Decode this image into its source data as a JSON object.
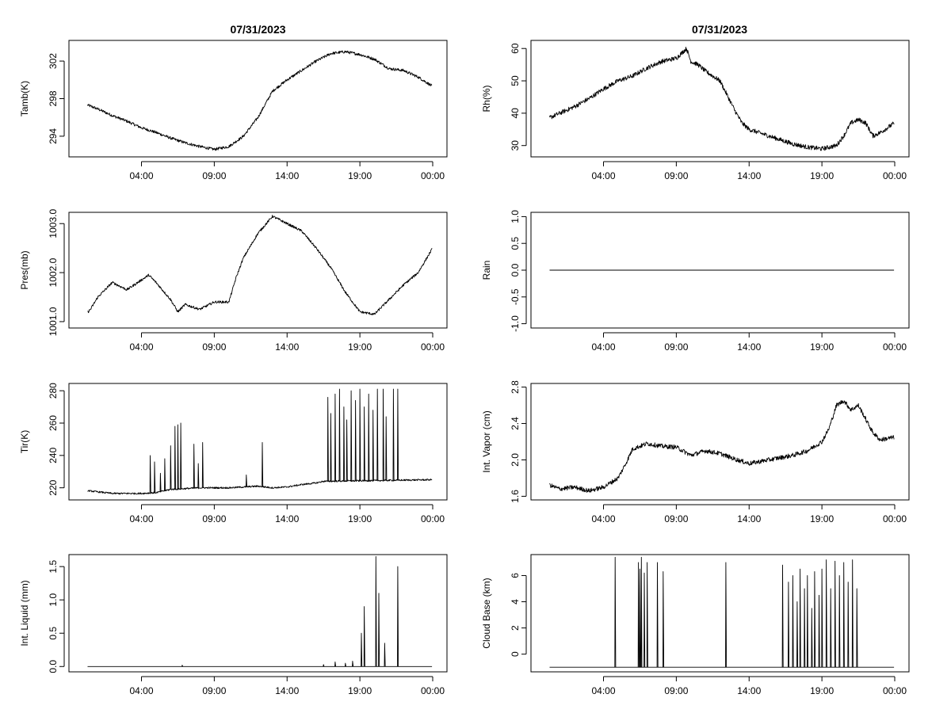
{
  "date_title": "07/31/2023",
  "x_tick_labels": [
    "04:00",
    "09:00",
    "14:00",
    "19:00",
    "00:00"
  ],
  "chart_data": [
    {
      "id": "tamb",
      "type": "line",
      "title": "07/31/2023",
      "ylabel": "Tamb(K)",
      "xlabel": "",
      "xlim": [
        0,
        24
      ],
      "ylim": [
        291.8,
        304.2
      ],
      "yticks": [
        294,
        298,
        302
      ],
      "ytick_labels": [
        "294",
        "298",
        "302"
      ],
      "series": [
        {
          "name": "Tamb",
          "noise": 0.15,
          "x": [
            0.0,
            1,
            2,
            3,
            4,
            5,
            6,
            7,
            8,
            9,
            10,
            11,
            11.5,
            12,
            13,
            14,
            15,
            16,
            17,
            18,
            19,
            20,
            21,
            22,
            23,
            24
          ],
          "y": [
            297.5,
            296.9,
            296.2,
            295.6,
            294.9,
            294.4,
            293.8,
            293.3,
            292.9,
            292.6,
            292.9,
            294.0,
            295.0,
            296.0,
            298.8,
            300.0,
            301.0,
            302.0,
            302.8,
            303.0,
            302.7,
            302.2,
            301.2,
            301.0,
            300.3,
            299.3
          ]
        }
      ]
    },
    {
      "id": "rh",
      "type": "line",
      "title": "07/31/2023",
      "ylabel": "Rh(%)",
      "xlabel": "",
      "xlim": [
        0,
        24
      ],
      "ylim": [
        26.5,
        62.5
      ],
      "yticks": [
        30,
        40,
        50,
        60
      ],
      "ytick_labels": [
        "30",
        "40",
        "50",
        "60"
      ],
      "series": [
        {
          "name": "Rh",
          "noise": 0.7,
          "x": [
            0.0,
            1,
            2,
            3,
            4,
            5,
            6,
            7,
            8,
            9,
            9.7,
            10,
            10.5,
            11,
            12,
            13,
            13.5,
            14,
            15,
            16,
            17,
            18,
            19,
            20,
            20.5,
            21,
            21.5,
            22,
            22.5,
            23,
            24
          ],
          "y": [
            38,
            40,
            42,
            44.5,
            47.5,
            50,
            51.5,
            54,
            56,
            57,
            60,
            56,
            55,
            53,
            50,
            41,
            37,
            35,
            33.5,
            32,
            30.5,
            29.5,
            29,
            30,
            33,
            37,
            38,
            37,
            33,
            34,
            37
          ]
        }
      ]
    },
    {
      "id": "pres",
      "type": "line",
      "title": "",
      "ylabel": "Pres(mb)",
      "xlabel": "",
      "xlim": [
        0,
        24
      ],
      "ylim": [
        1000.87,
        1003.23
      ],
      "yticks": [
        1001.0,
        1002.0,
        1003.0
      ],
      "ytick_labels": [
        "1001.0",
        "1002.0",
        "1003.0"
      ],
      "series": [
        {
          "name": "Pres",
          "noise": 0.025,
          "x": [
            0.0,
            0.5,
            1,
            2,
            3,
            4,
            4.5,
            5,
            6,
            6.5,
            7,
            8,
            9,
            10,
            10.5,
            11,
            12,
            13,
            14,
            15,
            16,
            17,
            18,
            19,
            20,
            21,
            22,
            23,
            24
          ],
          "y": [
            1001.1,
            1001.25,
            1001.5,
            1001.8,
            1001.65,
            1001.85,
            1001.95,
            1001.8,
            1001.45,
            1001.2,
            1001.35,
            1001.25,
            1001.4,
            1001.4,
            1001.9,
            1002.3,
            1002.8,
            1003.15,
            1003.0,
            1002.85,
            1002.5,
            1002.1,
            1001.6,
            1001.2,
            1001.15,
            1001.45,
            1001.75,
            1002.0,
            1002.5
          ]
        }
      ]
    },
    {
      "id": "rain",
      "type": "line",
      "title": "",
      "ylabel": "Rain",
      "xlabel": "",
      "xlim": [
        0,
        24
      ],
      "ylim": [
        -1.08,
        1.08
      ],
      "yticks": [
        -1.0,
        -0.5,
        0.0,
        0.5,
        1.0
      ],
      "ytick_labels": [
        "-1.0",
        "-0.5",
        "0.0",
        "0.5",
        "1.0"
      ],
      "series": [
        {
          "name": "Rain",
          "noise": 0,
          "x": [
            0,
            24
          ],
          "y": [
            0,
            0
          ]
        }
      ]
    },
    {
      "id": "tir",
      "type": "line",
      "title": "",
      "ylabel": "Tir(K)",
      "xlabel": "",
      "xlim": [
        0,
        24
      ],
      "ylim": [
        212.5,
        284.5
      ],
      "yticks": [
        220,
        240,
        260,
        280
      ],
      "ytick_labels": [
        "220",
        "240",
        "260",
        "280"
      ],
      "baseline": [
        [
          0,
          218.5
        ],
        [
          1,
          217.5
        ],
        [
          2,
          216.5
        ],
        [
          3,
          216.5
        ],
        [
          4,
          216.5
        ],
        [
          5,
          217
        ],
        [
          6,
          219
        ],
        [
          7,
          219.5
        ],
        [
          8,
          220
        ],
        [
          9,
          220
        ],
        [
          10,
          220
        ],
        [
          11,
          220.5
        ],
        [
          12,
          221
        ],
        [
          13,
          220
        ],
        [
          14,
          220.5
        ],
        [
          15,
          222
        ],
        [
          16,
          223
        ],
        [
          16.5,
          224
        ],
        [
          24,
          225
        ]
      ],
      "noise": 0.5,
      "spikes": [
        [
          4.6,
          240
        ],
        [
          4.9,
          236
        ],
        [
          5.3,
          229
        ],
        [
          5.6,
          238
        ],
        [
          6,
          246
        ],
        [
          6.3,
          258
        ],
        [
          6.5,
          259
        ],
        [
          6.7,
          260
        ],
        [
          7.6,
          247
        ],
        [
          7.9,
          235
        ],
        [
          8.2,
          248
        ],
        [
          11.2,
          228
        ],
        [
          12.3,
          248
        ],
        [
          16.8,
          276
        ],
        [
          17,
          266
        ],
        [
          17.3,
          278
        ],
        [
          17.6,
          281
        ],
        [
          17.9,
          270
        ],
        [
          18.1,
          262
        ],
        [
          18.4,
          280
        ],
        [
          18.7,
          274
        ],
        [
          19,
          281
        ],
        [
          19.3,
          270
        ],
        [
          19.6,
          278
        ],
        [
          19.9,
          268
        ],
        [
          20.2,
          281
        ],
        [
          20.6,
          281
        ],
        [
          20.8,
          264
        ],
        [
          21.3,
          281
        ],
        [
          21.6,
          281
        ]
      ],
      "series_name": "Tir"
    },
    {
      "id": "vapor",
      "type": "line",
      "title": "",
      "ylabel": "Int. Vapor (cm)",
      "xlabel": "",
      "xlim": [
        0,
        24
      ],
      "ylim": [
        1.56,
        2.84
      ],
      "yticks": [
        1.6,
        2.0,
        2.4,
        2.8
      ],
      "ytick_labels": [
        "1.6",
        "2.0",
        "2.4",
        "2.8"
      ],
      "series": [
        {
          "name": "Int. Vapor",
          "noise": 0.025,
          "x": [
            0.0,
            1,
            2,
            3,
            4,
            5,
            5.5,
            6,
            7,
            8,
            9,
            10,
            11,
            12,
            13,
            14,
            15,
            16,
            17,
            18,
            19,
            19.5,
            20,
            20.5,
            21,
            21.5,
            22,
            22.5,
            23,
            24
          ],
          "y": [
            1.74,
            1.68,
            1.7,
            1.66,
            1.7,
            1.8,
            1.95,
            2.12,
            2.18,
            2.15,
            2.14,
            2.05,
            2.1,
            2.07,
            2.01,
            1.96,
            1.99,
            2.02,
            2.05,
            2.1,
            2.2,
            2.35,
            2.6,
            2.65,
            2.55,
            2.6,
            2.45,
            2.3,
            2.22,
            2.25
          ]
        }
      ]
    },
    {
      "id": "liquid",
      "type": "line",
      "title": "",
      "ylabel": "Int. Liquid (mm)",
      "xlabel": "",
      "xlim": [
        0,
        24
      ],
      "ylim": [
        -0.08,
        1.68
      ],
      "yticks": [
        0.0,
        0.5,
        1.0,
        1.5
      ],
      "ytick_labels": [
        "0.0",
        "0.5",
        "1.0",
        "1.5"
      ],
      "baseline": [
        [
          0,
          0
        ],
        [
          24,
          0
        ]
      ],
      "noise": 0,
      "spikes": [
        [
          6.8,
          0.02
        ],
        [
          16.5,
          0.03
        ],
        [
          17.3,
          0.07
        ],
        [
          18,
          0.05
        ],
        [
          18.5,
          0.08
        ],
        [
          19.1,
          0.5
        ],
        [
          19.3,
          0.9
        ],
        [
          20.1,
          1.65
        ],
        [
          20.3,
          1.1
        ],
        [
          20.7,
          0.35
        ],
        [
          21.6,
          1.5
        ]
      ],
      "series_name": "Int. Liquid"
    },
    {
      "id": "cloud",
      "type": "line",
      "title": "",
      "ylabel": "Cloud Base (km)",
      "xlabel": "",
      "xlim": [
        0,
        24
      ],
      "ylim": [
        -1.35,
        7.6
      ],
      "yticks": [
        0,
        2,
        4,
        6
      ],
      "ytick_labels": [
        "0",
        "2",
        "4",
        "6"
      ],
      "baseline": [
        [
          0,
          -1
        ],
        [
          24,
          -1
        ]
      ],
      "noise": 0,
      "spikes": [
        [
          4.8,
          7.4
        ],
        [
          6.4,
          7.0
        ],
        [
          6.5,
          6.5
        ],
        [
          6.6,
          7.4
        ],
        [
          6.8,
          6.2
        ],
        [
          7,
          7.0
        ],
        [
          7.7,
          7.0
        ],
        [
          8.1,
          6.3
        ],
        [
          12.4,
          7.0
        ],
        [
          16.3,
          6.8
        ],
        [
          16.7,
          5.5
        ],
        [
          17,
          6.0
        ],
        [
          17.3,
          4.0
        ],
        [
          17.5,
          6.5
        ],
        [
          17.8,
          5.0
        ],
        [
          18,
          6.0
        ],
        [
          18.3,
          3.5
        ],
        [
          18.5,
          6.3
        ],
        [
          18.8,
          4.5
        ],
        [
          19,
          6.5
        ],
        [
          19.3,
          7.2
        ],
        [
          19.6,
          5.0
        ],
        [
          19.9,
          7.1
        ],
        [
          20.2,
          6.0
        ],
        [
          20.5,
          7.0
        ],
        [
          20.8,
          5.5
        ],
        [
          21.1,
          7.2
        ],
        [
          21.4,
          5.0
        ]
      ],
      "series_name": "Cloud Base"
    }
  ]
}
